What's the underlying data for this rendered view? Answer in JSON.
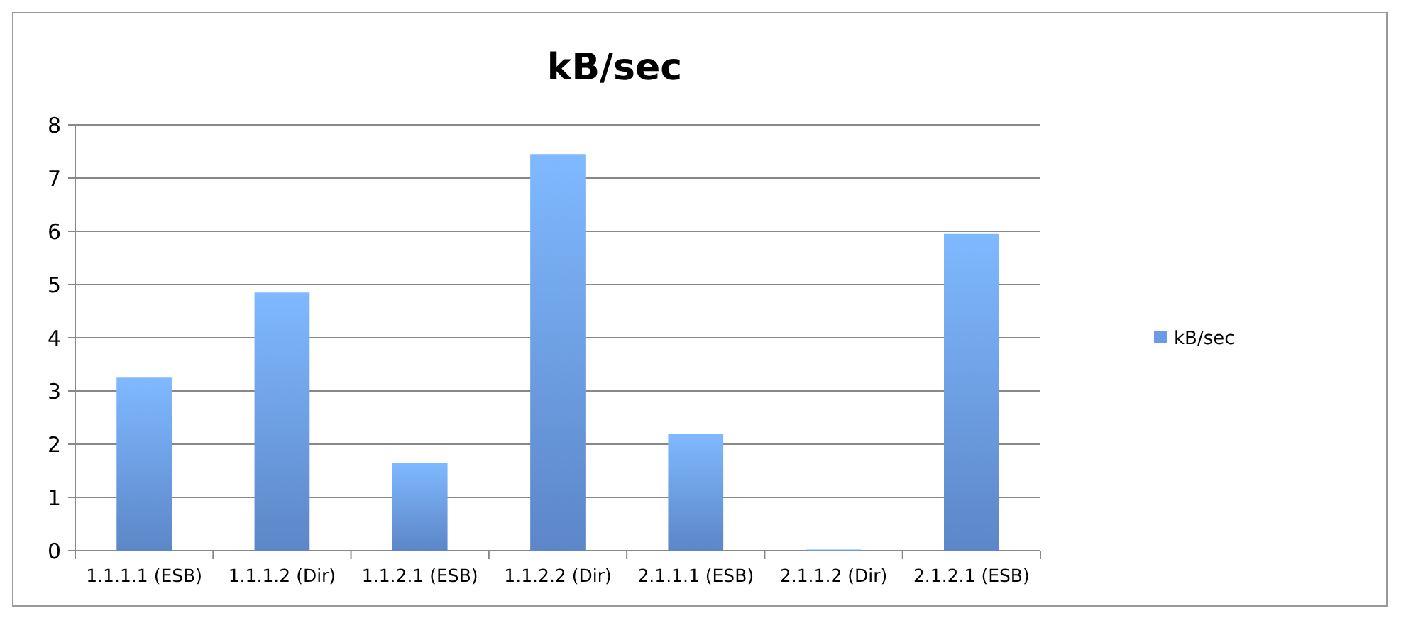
{
  "chart_data": {
    "type": "bar",
    "title": "kB/sec",
    "categories": [
      "1.1.1.1 (ESB)",
      "1.1.1.2 (Dir)",
      "1.1.2.1 (ESB)",
      "1.1.2.2 (Dir)",
      "2.1.1.1 (ESB)",
      "2.1.1.2 (Dir)",
      "2.1.2.1 (ESB)"
    ],
    "series": [
      {
        "name": "kB/sec",
        "color": "#6a9be6",
        "values": [
          3.25,
          4.85,
          1.65,
          7.45,
          2.2,
          0.02,
          5.95
        ]
      }
    ],
    "ylim": [
      0,
      8
    ],
    "yticks": [
      0,
      1,
      2,
      3,
      4,
      5,
      6,
      7,
      8
    ],
    "grid": "y",
    "legend": "right"
  }
}
